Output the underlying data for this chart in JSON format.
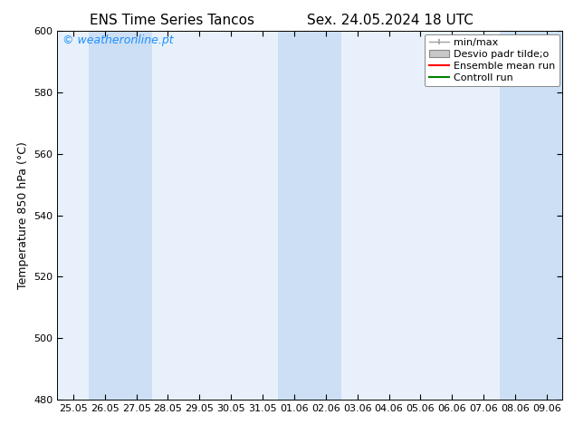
{
  "title_left": "ENS Time Series Tancos",
  "title_right": "Sex. 24.05.2024 18 UTC",
  "ylabel": "Temperature 850 hPa (°C)",
  "ylim": [
    480,
    600
  ],
  "yticks": [
    480,
    500,
    520,
    540,
    560,
    580,
    600
  ],
  "xtick_labels": [
    "25.05",
    "26.05",
    "27.05",
    "28.05",
    "29.05",
    "30.05",
    "31.05",
    "01.06",
    "02.06",
    "03.06",
    "04.06",
    "05.06",
    "06.06",
    "07.06",
    "08.06",
    "09.06"
  ],
  "background_color": "#ffffff",
  "plot_bg_color": "#e8f1fb",
  "shaded_color": "#ccdff5",
  "shaded_indices": [
    1,
    2,
    7,
    8,
    14,
    15
  ],
  "watermark_text": "© weatheronline.pt",
  "watermark_color": "#1e90ff",
  "legend_entries": [
    "min/max",
    "Desvio padr tilde;o",
    "Ensemble mean run",
    "Controll run"
  ],
  "legend_line_color_minmax": "#a0a0a0",
  "legend_patch_color": "#c8c8c8",
  "legend_line_color_ensemble": "#ff0000",
  "legend_line_color_control": "#008000",
  "title_fontsize": 11,
  "tick_fontsize": 8,
  "ylabel_fontsize": 9,
  "watermark_fontsize": 9,
  "legend_fontsize": 8
}
